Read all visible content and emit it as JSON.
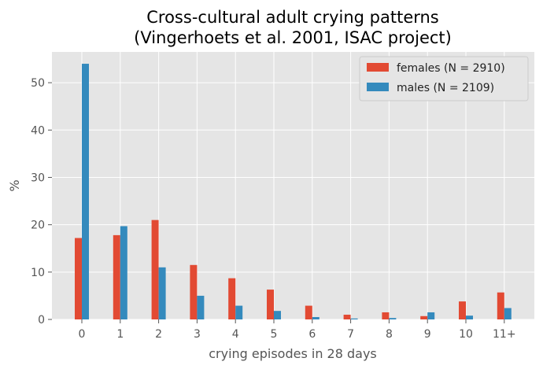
{
  "chart_data": {
    "type": "bar",
    "title": "Cross-cultural adult crying patterns",
    "subtitle": "(Vingerhoets et al. 2001, ISAC project)",
    "xlabel": "crying episodes in 28 days",
    "ylabel": "%",
    "categories": [
      "0",
      "1",
      "2",
      "3",
      "4",
      "5",
      "6",
      "7",
      "8",
      "9",
      "10",
      "11+"
    ],
    "series": [
      {
        "name": "females (N = 2910)",
        "color": "#e24a33",
        "values": [
          17.2,
          17.8,
          21.0,
          11.5,
          8.7,
          6.3,
          2.9,
          1.0,
          1.5,
          0.7,
          3.8,
          5.7
        ]
      },
      {
        "name": "males (N = 2109)",
        "color": "#348abd",
        "values": [
          54.0,
          19.7,
          11.0,
          5.0,
          2.9,
          1.8,
          0.5,
          0.2,
          0.3,
          1.5,
          0.8,
          2.4
        ]
      }
    ],
    "ylim": [
      0,
      56.5
    ],
    "yticks": [
      0,
      10,
      20,
      30,
      40,
      50
    ],
    "grid": true,
    "legend_position": "top-right",
    "style": {
      "background": "#e5e5e5",
      "grid_color": "#ffffff"
    }
  }
}
